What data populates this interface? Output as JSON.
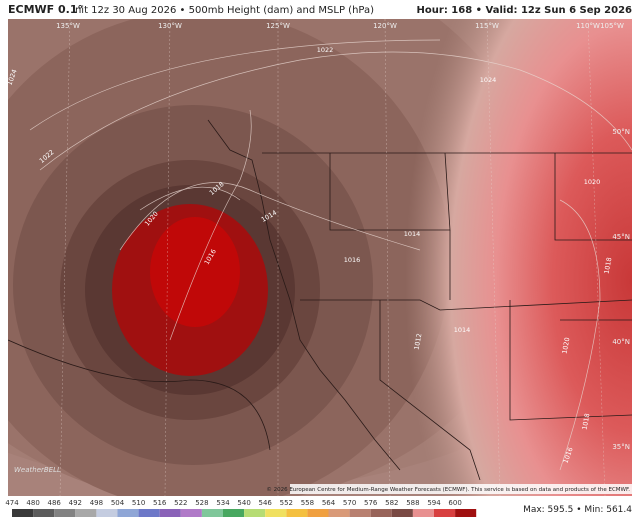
{
  "header": {
    "model": "ECMWF 0.1°",
    "description": "Init 12z 30 Aug 2026 • 500mb Height (dam) and MSLP (hPa)",
    "valid": "Hour: 168 • Valid: 12z Sun 6 Sep 2026"
  },
  "map": {
    "longitude_labels": [
      "135°W",
      "130°W",
      "125°W",
      "120°W",
      "115°W",
      "110°W",
      "105°W"
    ],
    "latitude_labels": [
      "50°N",
      "45°N",
      "40°N",
      "35°N"
    ],
    "contour_labels": [
      "1022",
      "1024",
      "1022",
      "1024",
      "1018",
      "1020",
      "1014",
      "1016",
      "1014",
      "1016",
      "1020",
      "1012",
      "1014",
      "1018",
      "1020",
      "1018",
      "1016"
    ],
    "copyright": "© 2026 European Centre for Medium-Range Weather Forecasts (ECMWF). This service is based on data and products of the ECMWF.",
    "watermark": "WeatherBELL"
  },
  "colorbar": {
    "labels": [
      "474",
      "480",
      "486",
      "492",
      "498",
      "504",
      "510",
      "516",
      "522",
      "528",
      "534",
      "540",
      "546",
      "552",
      "558",
      "564",
      "570",
      "576",
      "582",
      "588",
      "594",
      "600"
    ],
    "colors": [
      "#3a3a3a",
      "#5c5c5c",
      "#828282",
      "#a8a8a8",
      "#c4cce0",
      "#8fa6d6",
      "#6d78c8",
      "#8a62b8",
      "#b07ac8",
      "#7fc79a",
      "#48a860",
      "#b6dc74",
      "#f0e060",
      "#f4c040",
      "#f0a040",
      "#d99a78",
      "#b88070",
      "#98645a",
      "#7a4a44",
      "#e89090",
      "#d84040",
      "#a01010"
    ],
    "stats": "Max: 595.5 • Min: 561.4"
  }
}
